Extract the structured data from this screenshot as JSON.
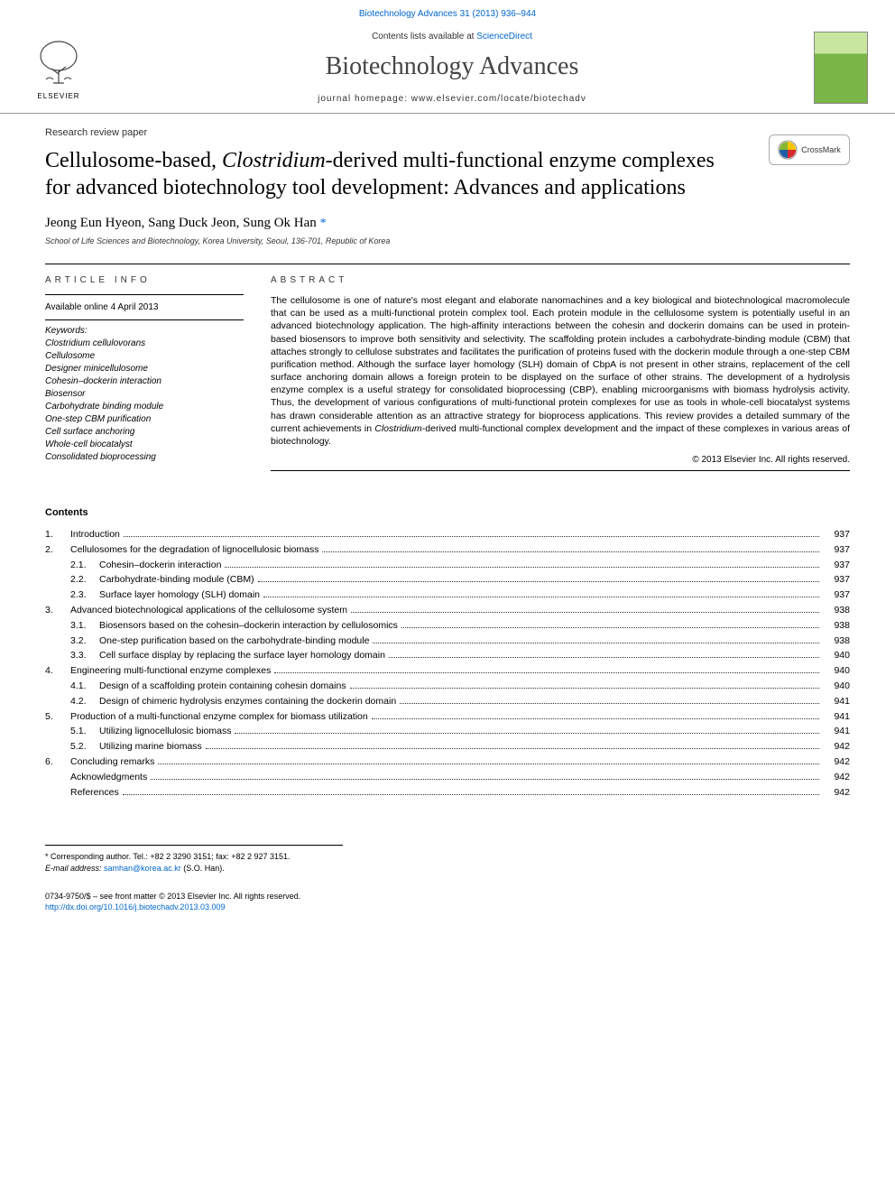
{
  "header_citation": "Biotechnology Advances 31 (2013) 936–944",
  "contents_lists_prefix": "Contents lists available at ",
  "contents_lists_link": "ScienceDirect",
  "journal_title": "Biotechnology Advances",
  "journal_homepage_prefix": "journal homepage: ",
  "journal_homepage_url": "www.elsevier.com/locate/biotechadv",
  "publisher_name": "ELSEVIER",
  "article_type": "Research review paper",
  "article_title_pre": "Cellulosome-based, ",
  "article_title_em": "Clostridium",
  "article_title_post": "-derived multi-functional enzyme complexes for advanced biotechnology tool development: Advances and applications",
  "crossmark_label": "CrossMark",
  "authors": "Jeong Eun Hyeon, Sang Duck Jeon, Sung Ok Han ",
  "corresponding_marker": "*",
  "affiliation": "School of Life Sciences and Biotechnology, Korea University, Seoul, 136-701, Republic of Korea",
  "article_info_header": "ARTICLE INFO",
  "abstract_header": "ABSTRACT",
  "available_online": "Available online 4 April 2013",
  "keywords_label": "Keywords:",
  "keywords": [
    "Clostridium cellulovorans",
    "Cellulosome",
    "Designer minicellulosome",
    "Cohesin–dockerin interaction",
    "Biosensor",
    "Carbohydrate binding module",
    "One-step CBM purification",
    "Cell surface anchoring",
    "Whole-cell biocatalyst",
    "Consolidated bioprocessing"
  ],
  "abstract_pre": "The cellulosome is one of nature's most elegant and elaborate nanomachines and a key biological and biotechnological macromolecule that can be used as a multi-functional protein complex tool. Each protein module in the cellulosome system is potentially useful in an advanced biotechnology application. The high-affinity interactions between the cohesin and dockerin domains can be used in protein-based biosensors to improve both sensitivity and selectivity. The scaffolding protein includes a carbohydrate-binding module (CBM) that attaches strongly to cellulose substrates and facilitates the purification of proteins fused with the dockerin module through a one-step CBM purification method. Although the surface layer homology (SLH) domain of CbpA is not present in other strains, replacement of the cell surface anchoring domain allows a foreign protein to be displayed on the surface of other strains. The development of a hydrolysis enzyme complex is a useful strategy for consolidated bioprocessing (CBP), enabling microorganisms with biomass hydrolysis activity. Thus, the development of various configurations of multi-functional protein complexes for use as tools in whole-cell biocatalyst systems has drawn considerable attention as an attractive strategy for bioprocess applications. This review provides a detailed summary of the current achievements in ",
  "abstract_em": "Clostridium",
  "abstract_post": "-derived multi-functional complex development and the impact of these complexes in various areas of biotechnology.",
  "copyright": "© 2013 Elsevier Inc. All rights reserved.",
  "contents_header": "Contents",
  "toc": [
    {
      "num": "1.",
      "label": "Introduction",
      "page": "937"
    },
    {
      "num": "2.",
      "label": "Cellulosomes for the degradation of lignocellulosic biomass",
      "page": "937"
    },
    {
      "sub": "2.1.",
      "label": "Cohesin–dockerin interaction",
      "page": "937"
    },
    {
      "sub": "2.2.",
      "label": "Carbohydrate-binding module (CBM)",
      "page": "937"
    },
    {
      "sub": "2.3.",
      "label": "Surface layer homology (SLH) domain",
      "page": "937"
    },
    {
      "num": "3.",
      "label": "Advanced biotechnological applications of the cellulosome system",
      "page": "938"
    },
    {
      "sub": "3.1.",
      "label": "Biosensors based on the cohesin–dockerin interaction by cellulosomics",
      "page": "938"
    },
    {
      "sub": "3.2.",
      "label": "One-step purification based on the carbohydrate-binding module",
      "page": "938"
    },
    {
      "sub": "3.3.",
      "label": "Cell surface display by replacing the surface layer homology domain",
      "page": "940"
    },
    {
      "num": "4.",
      "label": "Engineering multi-functional enzyme complexes",
      "page": "940"
    },
    {
      "sub": "4.1.",
      "label": "Design of a scaffolding protein containing cohesin domains",
      "page": "940"
    },
    {
      "sub": "4.2.",
      "label": "Design of chimeric hydrolysis enzymes containing the dockerin domain",
      "page": "941"
    },
    {
      "num": "5.",
      "label": "Production of a multi-functional enzyme complex for biomass utilization",
      "page": "941"
    },
    {
      "sub": "5.1.",
      "label": "Utilizing lignocellulosic biomass",
      "page": "941"
    },
    {
      "sub": "5.2.",
      "label": "Utilizing marine biomass",
      "page": "942"
    },
    {
      "num": "6.",
      "label": "Concluding remarks",
      "page": "942"
    },
    {
      "label": "Acknowledgments",
      "page": "942"
    },
    {
      "label": "References",
      "page": "942"
    }
  ],
  "footnote_corresponding": "* Corresponding author. Tel.: +82 2 3290 3151; fax: +82 2 927 3151.",
  "footnote_email_label": "E-mail address: ",
  "footnote_email": "samhan@korea.ac.kr",
  "footnote_email_author": " (S.O. Han).",
  "issn_line": "0734-9750/$ – see front matter © 2013 Elsevier Inc. All rights reserved.",
  "doi_url": "http://dx.doi.org/10.1016/j.biotechadv.2013.03.009",
  "colors": {
    "link": "#0066cc",
    "text": "#000000",
    "muted": "#333333",
    "cover_top": "#c8e6a0",
    "cover_bottom": "#7ab648",
    "crossmark_blue": "#1f5fa8",
    "crossmark_red": "#d8272d",
    "crossmark_yellow": "#f7c600",
    "crossmark_green": "#8ab733"
  }
}
